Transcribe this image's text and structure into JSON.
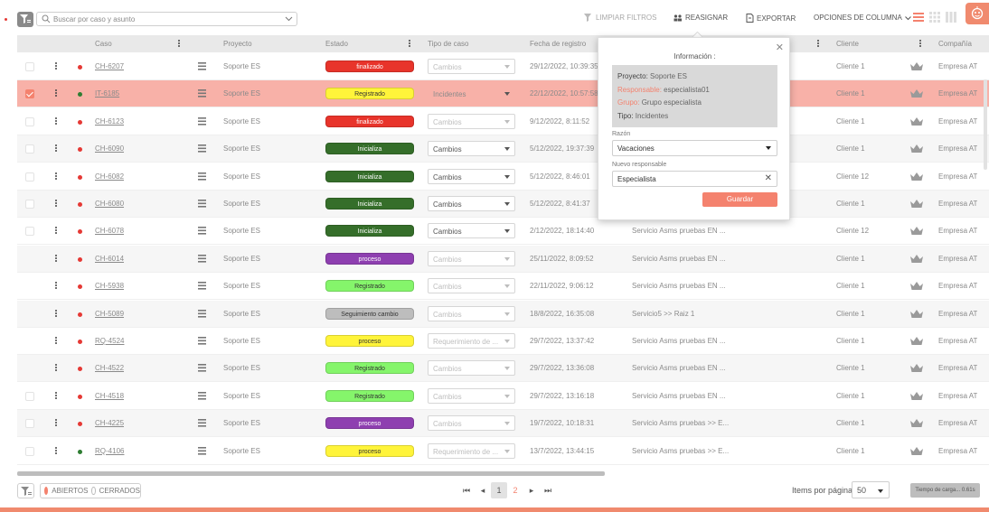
{
  "toolbar": {
    "search_placeholder": "Buscar por caso y asunto",
    "clear_filters": "LIMPIAR FILTROS",
    "reassign": "REASIGNAR",
    "export": "EXPORTAR",
    "column_options": "OPCIONES DE COLUMNA"
  },
  "columns": {
    "case": "Caso",
    "project": "Proyecto",
    "state": "Estado",
    "case_type": "Tipo de caso",
    "reg_date": "Fecha de registro",
    "client": "Cliente",
    "company": "Compañía"
  },
  "rows": [
    {
      "case": "CH-6207",
      "status_color": "#e53935",
      "project": "Soporte ES",
      "state": "finalizado",
      "state_bg": "#e8342b",
      "state_fg": "#ffffff",
      "type": "Cambios",
      "date": "29/12/2022, 10:39:35",
      "subject": "",
      "client": "Cliente 1",
      "company": "Empresa AT",
      "checked": false
    },
    {
      "case": "IT-6185",
      "status_color": "#2e7d32",
      "project": "Soporte ES",
      "state": "Registrado",
      "state_bg": "#fff43a",
      "state_fg": "#333333",
      "type": "Incidentes",
      "date": "22/12/2022, 10:57:58",
      "subject": "",
      "client": "Cliente 1",
      "company": "Empresa AT",
      "checked": true
    },
    {
      "case": "CH-6123",
      "status_color": "#e53935",
      "project": "Soporte ES",
      "state": "finalizado",
      "state_bg": "#e8342b",
      "state_fg": "#ffffff",
      "type": "Cambios",
      "date": "9/12/2022, 8:11:52",
      "subject": "",
      "client": "Cliente 1",
      "company": "Empresa AT",
      "checked": false
    },
    {
      "case": "CH-6090",
      "status_color": "#e53935",
      "project": "Soporte ES",
      "state": "Inicializa",
      "state_bg": "#356e2a",
      "state_fg": "#ffffff",
      "type": "Cambios",
      "date": "5/12/2022, 19:37:39",
      "subject": "",
      "client": "Cliente 1",
      "company": "Empresa AT",
      "checked": false
    },
    {
      "case": "CH-6082",
      "status_color": "#e53935",
      "project": "Soporte ES",
      "state": "Inicializa",
      "state_bg": "#356e2a",
      "state_fg": "#ffffff",
      "type": "Cambios",
      "date": "5/12/2022, 8:46:01",
      "subject": "",
      "client": "Cliente 12",
      "company": "Empresa AT",
      "checked": false
    },
    {
      "case": "CH-6080",
      "status_color": "#e53935",
      "project": "Soporte ES",
      "state": "Inicializa",
      "state_bg": "#356e2a",
      "state_fg": "#ffffff",
      "type": "Cambios",
      "date": "5/12/2022, 8:41:37",
      "subject": "",
      "client": "Cliente 1",
      "company": "Empresa AT",
      "checked": false
    },
    {
      "case": "CH-6078",
      "status_color": "#e53935",
      "project": "Soporte ES",
      "state": "Inicializa",
      "state_bg": "#356e2a",
      "state_fg": "#ffffff",
      "type": "Cambios",
      "date": "2/12/2022, 18:14:40",
      "subject": "Servicio Asms pruebas EN ...",
      "client": "Cliente 12",
      "company": "Empresa AT",
      "checked": false
    },
    {
      "case": "CH-6014",
      "status_color": "#e53935",
      "project": "Soporte ES",
      "state": "proceso",
      "state_bg": "#8e3fb0",
      "state_fg": "#ffffff",
      "type": "Cambios",
      "date": "25/11/2022, 8:09:52",
      "subject": "Servicio Asms pruebas EN ...",
      "client": "Cliente 1",
      "company": "Empresa AT",
      "checked": null
    },
    {
      "case": "CH-5938",
      "status_color": "#e53935",
      "project": "Soporte ES",
      "state": "Registrado",
      "state_bg": "#85f56b",
      "state_fg": "#333333",
      "type": "Cambios",
      "date": "22/11/2022, 9:06:12",
      "subject": "Servicio Asms pruebas EN ...",
      "client": "Cliente 1",
      "company": "Empresa AT",
      "checked": null
    },
    {
      "case": "CH-5089",
      "status_color": "#e53935",
      "project": "Soporte ES",
      "state": "Seguimiento cambio",
      "state_bg": "#bdbdbd",
      "state_fg": "#333333",
      "type": "Cambios",
      "date": "18/8/2022, 16:35:08",
      "subject": "Servicio5 >> Raiz 1",
      "client": "Cliente 1",
      "company": "Empresa AT",
      "checked": null
    },
    {
      "case": "RQ-4524",
      "status_color": "#e53935",
      "project": "Soporte ES",
      "state": "proceso",
      "state_bg": "#fff43a",
      "state_fg": "#333333",
      "type": "Requerimiento de ...",
      "date": "29/7/2022, 13:37:42",
      "subject": "Servicio Asms pruebas EN ...",
      "client": "Cliente 1",
      "company": "Empresa AT",
      "checked": null
    },
    {
      "case": "CH-4522",
      "status_color": "#e53935",
      "project": "Soporte ES",
      "state": "Registrado",
      "state_bg": "#85f56b",
      "state_fg": "#333333",
      "type": "Cambios",
      "date": "29/7/2022, 13:36:08",
      "subject": "Servicio Asms pruebas EN ...",
      "client": "Cliente 1",
      "company": "Empresa AT",
      "checked": null
    },
    {
      "case": "CH-4518",
      "status_color": "#e53935",
      "project": "Soporte ES",
      "state": "Registrado",
      "state_bg": "#85f56b",
      "state_fg": "#333333",
      "type": "Cambios",
      "date": "29/7/2022, 13:16:18",
      "subject": "Servicio Asms pruebas EN ...",
      "client": "Cliente 1",
      "company": "Empresa AT",
      "checked": false
    },
    {
      "case": "CH-4225",
      "status_color": "#e53935",
      "project": "Soporte ES",
      "state": "proceso",
      "state_bg": "#8e3fb0",
      "state_fg": "#ffffff",
      "type": "Cambios",
      "date": "19/7/2022, 10:18:31",
      "subject": "Servicio Asms pruebas >> E...",
      "client": "Cliente 1",
      "company": "Empresa AT",
      "checked": false
    },
    {
      "case": "RQ-4106",
      "status_color": "#2e7d32",
      "project": "Soporte ES",
      "state": "proceso",
      "state_bg": "#fff43a",
      "state_fg": "#333333",
      "type": "Requerimiento de ...",
      "date": "13/7/2022, 13:44:15",
      "subject": "Servicio Asms pruebas >> E...",
      "client": "Cliente 1",
      "company": "Empresa AT",
      "checked": false
    }
  ],
  "popup": {
    "title": "Información :",
    "project_label": "Proyecto:",
    "project_value": "Soporte ES",
    "responsible_label": "Responsable:",
    "responsible_value": "especialista01",
    "group_label": "Grupo:",
    "group_value": "Grupo especialista",
    "type_label": "Tipo:",
    "type_value": "Incidentes",
    "reason_label": "Razón",
    "reason_value": "Vacaciones",
    "new_resp_label": "Nuevo responsable",
    "new_resp_value": "Especialista",
    "save": "Guardar"
  },
  "footer": {
    "open": "ABIERTOS",
    "closed": "CERRADOS",
    "page_current": "1",
    "page_next": "2",
    "items_per_page_label": "Items por página",
    "items_per_page": "50",
    "load_time": "Tiempo de carga... 0.61s"
  },
  "colors": {
    "accent": "#f4826e",
    "selected_row": "#f8b1a8"
  }
}
